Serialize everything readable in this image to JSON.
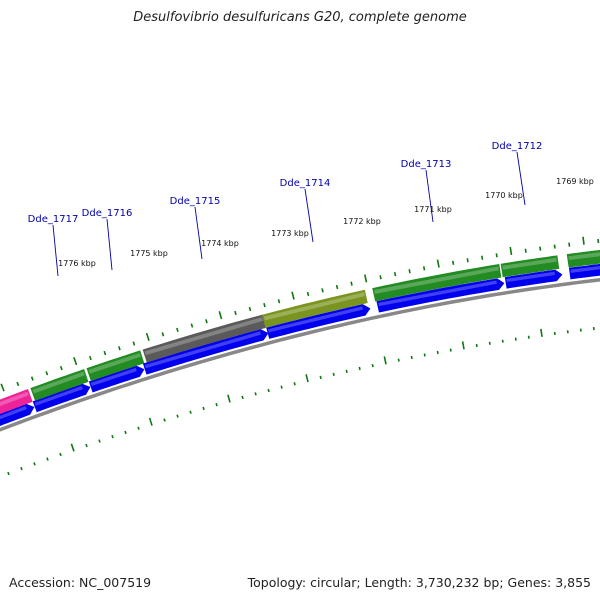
{
  "title": "Desulfovibrio desulfuricans G20, complete genome",
  "footer": {
    "accession": "Accession: NC_007519",
    "stats": "Topology: circular; Length: 3,730,232 bp; Genes: 3,855"
  },
  "colors": {
    "forward_gene": "#228b22",
    "reverse_cds": "#0000ee",
    "pink_gene": "#ee2299",
    "gray_gene": "#5a5a5a",
    "olive_gene": "#7a9420",
    "label": "#0000aa",
    "tick": "#117711",
    "backbone": "#888888"
  },
  "kbp_ticks": [
    "1776 kbp",
    "1775 kbp",
    "1774 kbp",
    "1773 kbp",
    "1772 kbp",
    "1771 kbp",
    "1770 kbp",
    "1769 kbp"
  ],
  "gene_labels": [
    "Dde_1717",
    "Dde_1716",
    "Dde_1715",
    "Dde_1714",
    "Dde_1713",
    "Dde_1712"
  ],
  "forward_genes": [
    "pink",
    "green",
    "green",
    "gray",
    "olive",
    "green",
    "green",
    "green"
  ],
  "reverse_genes": [
    "blue",
    "blue",
    "blue",
    "blue",
    "blue",
    "blue",
    "blue",
    "blue"
  ]
}
